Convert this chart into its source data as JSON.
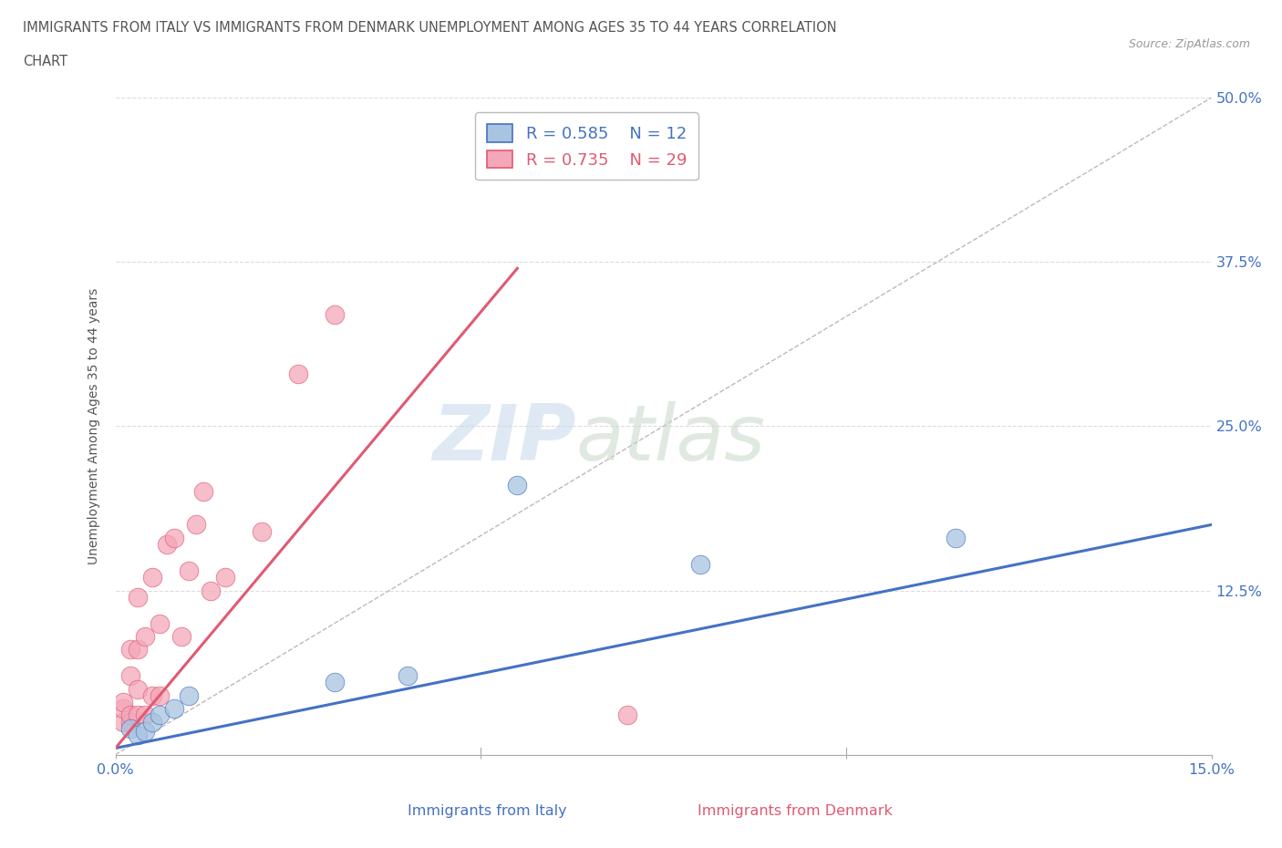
{
  "title_line1": "IMMIGRANTS FROM ITALY VS IMMIGRANTS FROM DENMARK UNEMPLOYMENT AMONG AGES 35 TO 44 YEARS CORRELATION",
  "title_line2": "CHART",
  "source": "Source: ZipAtlas.com",
  "ylabel": "Unemployment Among Ages 35 to 44 years",
  "xlabel_italy": "Immigrants from Italy",
  "xlabel_denmark": "Immigrants from Denmark",
  "xlim": [
    0.0,
    0.15
  ],
  "ylim": [
    0.0,
    0.5
  ],
  "yticks": [
    0.0,
    0.125,
    0.25,
    0.375,
    0.5
  ],
  "ytick_labels": [
    "",
    "12.5%",
    "25.0%",
    "37.5%",
    "50.0%"
  ],
  "xticks": [
    0.0,
    0.05,
    0.1,
    0.15
  ],
  "xtick_labels": [
    "0.0%",
    "",
    "",
    "15.0%"
  ],
  "italy_color": "#a8c4e0",
  "denmark_color": "#f4a7b9",
  "italy_line_color": "#4472c4",
  "denmark_line_color": "#e05a72",
  "diagonal_color": "#c0b8b8",
  "italy_R": 0.585,
  "italy_N": 12,
  "denmark_R": 0.735,
  "denmark_N": 29,
  "italy_scatter_x": [
    0.002,
    0.003,
    0.004,
    0.005,
    0.006,
    0.008,
    0.01,
    0.03,
    0.04,
    0.055,
    0.08,
    0.115
  ],
  "italy_scatter_y": [
    0.02,
    0.015,
    0.018,
    0.025,
    0.03,
    0.035,
    0.045,
    0.055,
    0.06,
    0.205,
    0.145,
    0.165
  ],
  "denmark_scatter_x": [
    0.001,
    0.001,
    0.001,
    0.002,
    0.002,
    0.002,
    0.002,
    0.003,
    0.003,
    0.003,
    0.003,
    0.004,
    0.004,
    0.005,
    0.005,
    0.006,
    0.006,
    0.007,
    0.008,
    0.009,
    0.01,
    0.011,
    0.012,
    0.013,
    0.015,
    0.02,
    0.025,
    0.03,
    0.07
  ],
  "denmark_scatter_y": [
    0.025,
    0.035,
    0.04,
    0.025,
    0.03,
    0.06,
    0.08,
    0.03,
    0.05,
    0.08,
    0.12,
    0.03,
    0.09,
    0.045,
    0.135,
    0.045,
    0.1,
    0.16,
    0.165,
    0.09,
    0.14,
    0.175,
    0.2,
    0.125,
    0.135,
    0.17,
    0.29,
    0.335,
    0.03
  ],
  "italy_line_x": [
    0.0,
    0.15
  ],
  "italy_line_y": [
    0.005,
    0.175
  ],
  "denmark_line_x": [
    0.0,
    0.055
  ],
  "denmark_line_y": [
    0.005,
    0.37
  ],
  "grid_color": "#dddddd",
  "background_color": "#ffffff",
  "watermark_zip": "ZIP",
  "watermark_atlas": "atlas",
  "watermark_color_zip": "#c5d8ea",
  "watermark_color_atlas": "#c8d8c8"
}
